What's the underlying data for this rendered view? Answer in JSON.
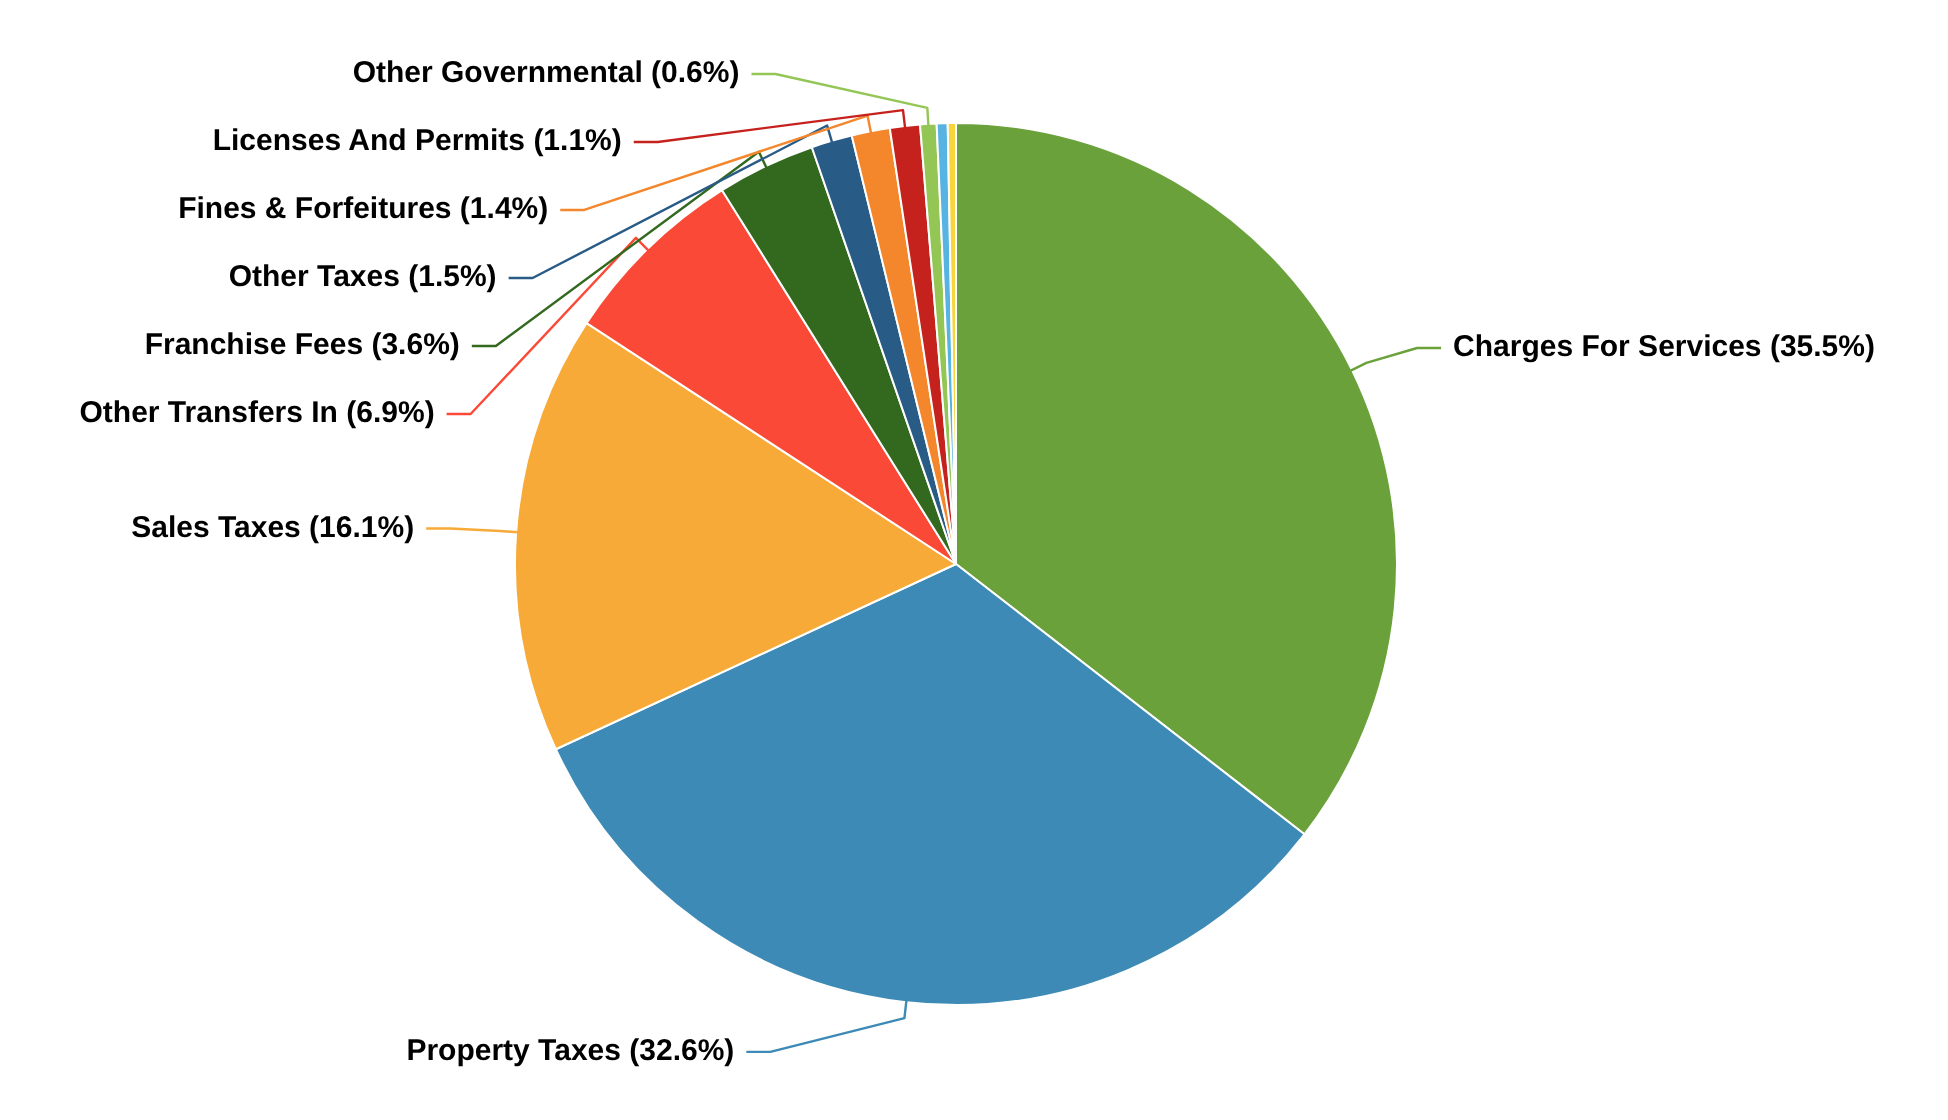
{
  "chart_data": {
    "type": "pie",
    "categories": [
      "Charges For Services",
      "Property Taxes",
      "Sales Taxes",
      "Other Transfers In",
      "Franchise Fees",
      "Other Taxes",
      "Fines & Forfeitures",
      "Licenses And Permits",
      "Other Governmental",
      null,
      null
    ],
    "values": [
      35.5,
      32.6,
      16.1,
      6.9,
      3.6,
      1.5,
      1.4,
      1.1,
      0.6,
      0.4,
      0.3
    ],
    "value_labels": [
      "(35.5%)",
      "(32.6%)",
      "(16.1%)",
      "(6.9%)",
      "(3.6%)",
      "(1.5%)",
      "(1.4%)",
      "(1.1%)",
      "(0.6%)",
      null,
      null
    ],
    "colors": [
      "#6aa13a",
      "#3c8ab5",
      "#f7aa38",
      "#fa4a37",
      "#32691f",
      "#285b85",
      "#f4862c",
      "#c5221e",
      "#93c655",
      "#57b4e2",
      "#f8d53c"
    ],
    "legend": false
  }
}
